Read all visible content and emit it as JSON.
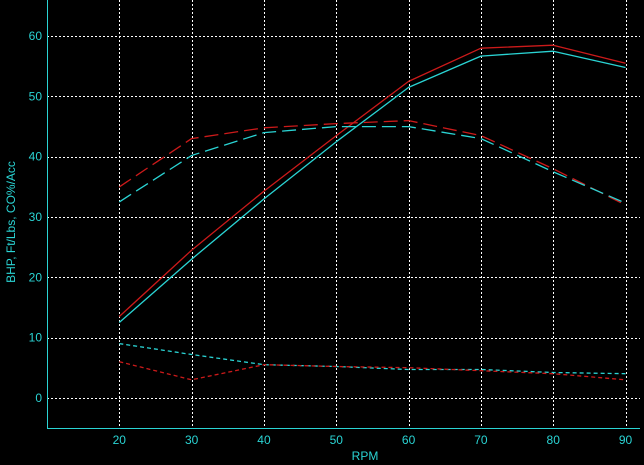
{
  "chart_data": {
    "type": "line",
    "title": "",
    "xlabel": "RPM",
    "ylabel": "BHP, Ft/Lbs, CO%/Acc",
    "x_ticks": [
      20,
      30,
      40,
      50,
      60,
      70,
      80,
      90
    ],
    "y_ticks": [
      0,
      10,
      20,
      30,
      40,
      50,
      60
    ],
    "xlim": [
      10,
      92
    ],
    "ylim": [
      -5,
      66
    ],
    "grid": true,
    "legend": "none",
    "series": [
      {
        "color": "#cc1a1a",
        "dash": "solid",
        "x": [
          20,
          30,
          40,
          50,
          60,
          70,
          80,
          90
        ],
        "values": [
          13.5,
          24.5,
          34.3,
          43.5,
          52.5,
          58.0,
          58.5,
          55.5
        ]
      },
      {
        "color": "#2ad4d4",
        "dash": "solid",
        "x": [
          20,
          30,
          40,
          50,
          60,
          70,
          80,
          90
        ],
        "values": [
          12.5,
          23.0,
          33.0,
          42.5,
          51.5,
          56.7,
          57.5,
          54.8
        ]
      },
      {
        "color": "#cc1a1a",
        "dash": "long-dash",
        "x": [
          20,
          30,
          40,
          50,
          60,
          70,
          80,
          90
        ],
        "values": [
          35.0,
          43.0,
          44.8,
          45.5,
          46.0,
          43.5,
          38.0,
          32.0
        ]
      },
      {
        "color": "#2ad4d4",
        "dash": "long-dash",
        "x": [
          20,
          30,
          40,
          50,
          60,
          70,
          80,
          90
        ],
        "values": [
          32.5,
          40.2,
          44.0,
          45.0,
          45.0,
          43.0,
          37.5,
          32.3
        ]
      },
      {
        "color": "#2ad4d4",
        "dash": "short-dash",
        "x": [
          20,
          30,
          40,
          50,
          60,
          70,
          80,
          90
        ],
        "values": [
          9.0,
          7.2,
          5.5,
          5.2,
          4.7,
          4.7,
          4.2,
          4.0
        ]
      },
      {
        "color": "#cc1a1a",
        "dash": "short-dash",
        "x": [
          20,
          30,
          40,
          50,
          60,
          70,
          80,
          90
        ],
        "values": [
          6.0,
          3.0,
          5.5,
          5.2,
          5.0,
          4.5,
          4.0,
          3.0
        ]
      }
    ],
    "colors": {
      "background": "#000000",
      "axis_text": "#2ad4d4",
      "grid": "#ffffff"
    }
  }
}
